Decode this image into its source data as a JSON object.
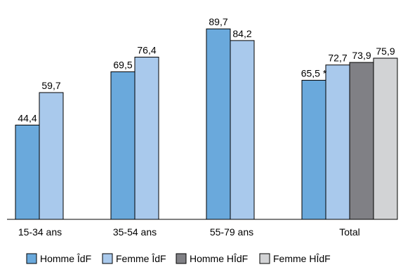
{
  "chart_data": {
    "type": "bar",
    "categories": [
      "15-34 ans",
      "35-54 ans",
      "55-79 ans",
      "Total"
    ],
    "series": [
      {
        "name": "Homme ÎdF",
        "color": "#6aa9dc",
        "values": [
          44.4,
          69.5,
          89.7,
          65.5
        ],
        "labels": [
          "44,4",
          "69,5",
          "89,7",
          "65,5 *"
        ]
      },
      {
        "name": "Femme ÎdF",
        "color": "#a9c9ec",
        "values": [
          59.7,
          76.4,
          84.2,
          72.7
        ],
        "labels": [
          "59,7",
          "76,4",
          "84,2",
          "72,7"
        ]
      },
      {
        "name": "Homme HÎdF",
        "color": "#808085",
        "values": [
          null,
          null,
          null,
          73.9
        ],
        "labels": [
          "",
          "",
          "",
          "73,9"
        ]
      },
      {
        "name": "Femme HÎdF",
        "color": "#d2d3d5",
        "values": [
          null,
          null,
          null,
          75.9
        ],
        "labels": [
          "",
          "",
          "",
          "75,9"
        ]
      }
    ],
    "ylim": [
      0,
      100
    ],
    "grid": false,
    "legend_position": "bottom",
    "axis_color": "#000000"
  }
}
